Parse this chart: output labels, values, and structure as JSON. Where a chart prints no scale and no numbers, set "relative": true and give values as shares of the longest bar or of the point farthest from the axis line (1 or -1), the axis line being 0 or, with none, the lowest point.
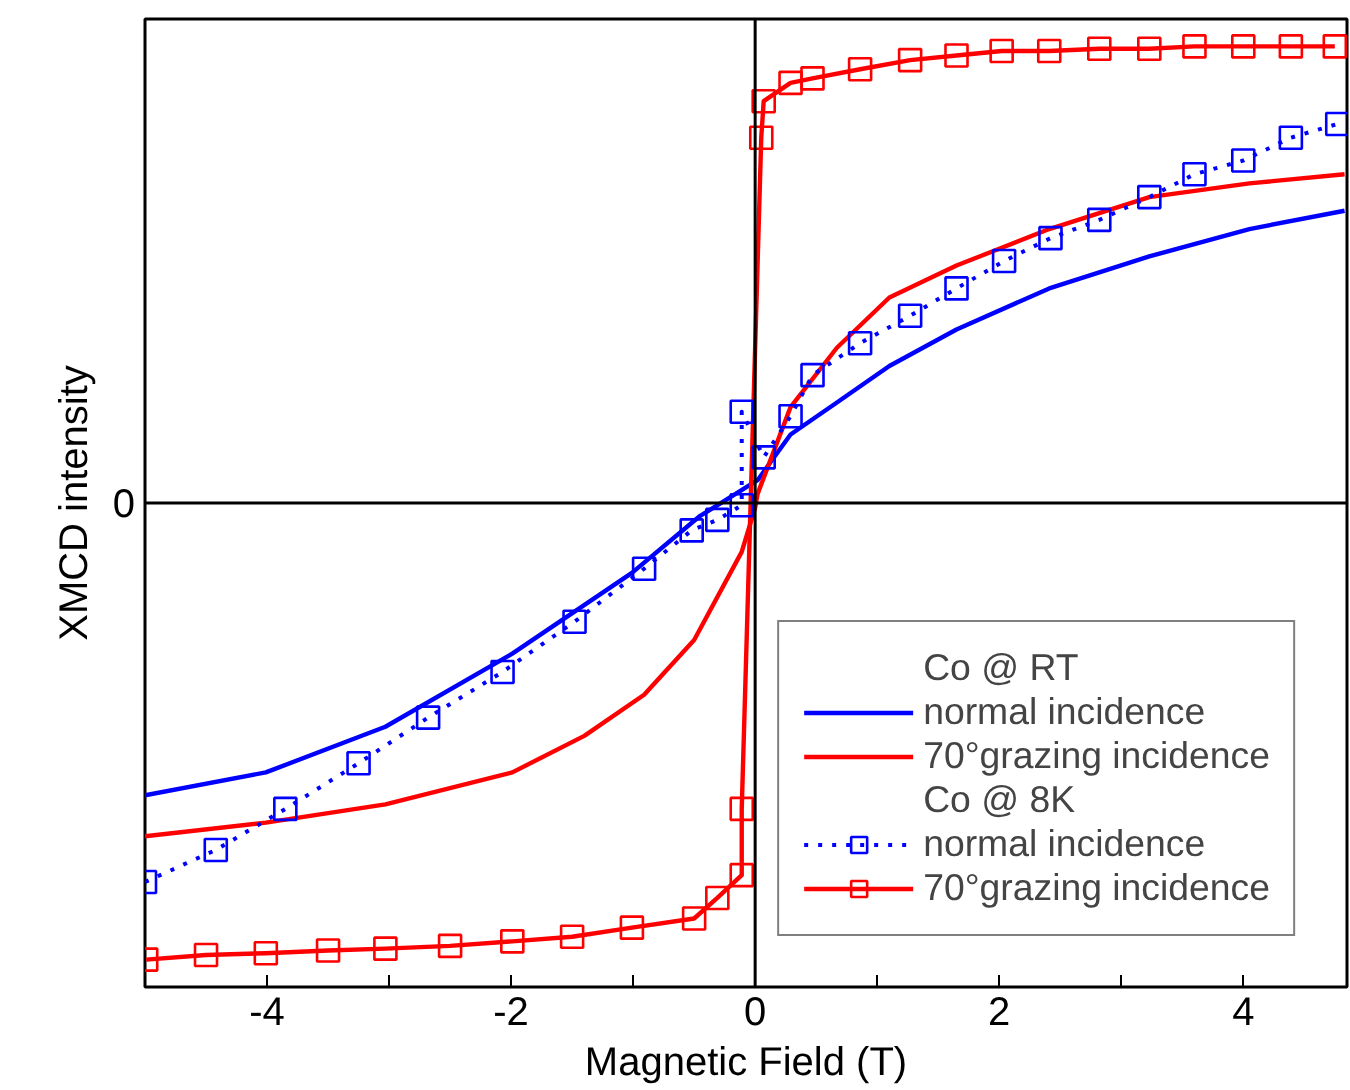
{
  "chart_data": {
    "type": "line",
    "relative": true,
    "xlabel": "Magnetic Field (T)",
    "ylabel": "XMCD intensity",
    "xlim": [
      -5,
      4.85
    ],
    "xticks": [
      {
        "value": -5,
        "label": null
      },
      -4,
      {
        "value": -3,
        "label": null
      },
      -2,
      {
        "value": -1,
        "label": null
      },
      0,
      {
        "value": 1,
        "label": null
      },
      2,
      {
        "value": 3,
        "label": null
      },
      4
    ],
    "grid": false,
    "legend": "bottom right",
    "marker": "none",
    "line_style": "solid",
    "annotations": [
      "Co @ RT",
      "Co @ 8K"
    ],
    "ref_lines": [
      {
        "axis": "y",
        "value": 0,
        "label": "0",
        "color": "#000000"
      },
      {
        "axis": "x",
        "value": 0,
        "label": null,
        "color": "#000000"
      }
    ],
    "series": [
      {
        "name": "normal incidence",
        "color": "#0000ff",
        "x": [
          -5.0,
          -4.01,
          -3.03,
          -1.99,
          -1.01,
          -0.46,
          0.02,
          0.29,
          0.67,
          1.1,
          1.65,
          2.41,
          3.23,
          4.05,
          4.83
        ],
        "values": [
          -0.64,
          -0.59,
          -0.49,
          -0.33,
          -0.153,
          -0.03,
          0.05,
          0.15,
          0.22,
          0.3,
          0.38,
          0.47,
          0.54,
          0.6,
          0.64
        ]
      },
      {
        "name": "70°grazing incidence",
        "color": "#ff0000",
        "x": [
          -5.0,
          -4.01,
          -3.03,
          -1.99,
          -1.4,
          -0.91,
          -0.5,
          -0.11,
          0.0,
          0.02,
          0.29,
          0.67,
          1.1,
          1.65,
          2.41,
          3.23,
          4.05,
          4.83
        ],
        "values": [
          -0.73,
          -0.7,
          -0.66,
          -0.59,
          -0.51,
          -0.42,
          -0.3,
          -0.107,
          -0.01,
          0.02,
          0.21,
          0.34,
          0.45,
          0.52,
          0.6,
          0.67,
          0.7,
          0.72
        ]
      },
      {
        "name": "normal incidence",
        "color": "#0000ff",
        "marker": "square",
        "line_style": "dotted",
        "x": [
          -5.0,
          -4.42,
          -3.85,
          -3.25,
          -2.68,
          -2.07,
          -1.48,
          -0.91,
          -0.52,
          -0.31,
          -0.11,
          -0.11,
          0.07,
          0.29,
          0.47,
          0.86,
          1.27,
          1.65,
          2.04,
          2.42,
          2.82,
          3.23,
          3.6,
          4.0,
          4.39,
          4.77
        ],
        "values": [
          -0.83,
          -0.76,
          -0.67,
          -0.57,
          -0.47,
          -0.37,
          -0.26,
          -0.144,
          -0.06,
          -0.037,
          -0.005,
          0.2,
          0.1,
          0.19,
          0.28,
          0.35,
          0.41,
          0.47,
          0.53,
          0.58,
          0.62,
          0.67,
          0.72,
          0.75,
          0.8,
          0.83
        ]
      },
      {
        "name": "70°grazing incidence",
        "color": "#ff0000",
        "marker": "square",
        "line_style": "solid",
        "x": [
          -4.99,
          -4.5,
          -4.01,
          -3.5,
          -3.03,
          -2.5,
          -1.99,
          -1.5,
          -1.01,
          -0.5,
          -0.31,
          -0.11,
          -0.11,
          0.05,
          0.07,
          0.29,
          0.47,
          0.86,
          1.27,
          1.65,
          2.02,
          2.41,
          2.82,
          3.23,
          3.6,
          4.0,
          4.39,
          4.75
        ],
        "values": [
          -1.0,
          -0.99,
          -0.986,
          -0.98,
          -0.976,
          -0.97,
          -0.96,
          -0.95,
          -0.93,
          -0.91,
          -0.865,
          -0.815,
          -0.67,
          0.8,
          0.88,
          0.92,
          0.93,
          0.95,
          0.97,
          0.98,
          0.99,
          0.99,
          0.995,
          0.995,
          1.0,
          1.0,
          1.0,
          1.0
        ]
      }
    ]
  }
}
